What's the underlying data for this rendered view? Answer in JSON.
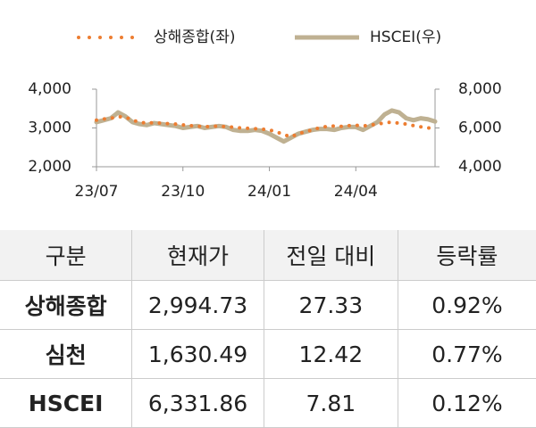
{
  "chart_data": {
    "type": "line",
    "categories": [
      "23/07",
      null,
      null,
      null,
      null,
      null,
      null,
      null,
      null,
      null,
      null,
      null,
      "23/10",
      null,
      null,
      null,
      null,
      null,
      null,
      null,
      null,
      null,
      null,
      null,
      "24/01",
      null,
      null,
      null,
      null,
      null,
      null,
      null,
      null,
      null,
      null,
      null,
      "24/04",
      null,
      null,
      null,
      null,
      null,
      null,
      null,
      null,
      null,
      null,
      null
    ],
    "series": [
      {
        "name": "상해종합(좌)",
        "color": "#ed7d31",
        "axis": "y",
        "values": [
          3200,
          3230,
          3250,
          3290,
          3280,
          3200,
          3150,
          3120,
          3140,
          3120,
          3110,
          3100,
          3080,
          3060,
          3050,
          3030,
          3040,
          3050,
          3030,
          3020,
          3000,
          2990,
          2980,
          2970,
          2950,
          2900,
          2830,
          2770,
          2850,
          2900,
          2950,
          3010,
          3040,
          3050,
          3040,
          3060,
          3070,
          3050,
          3070,
          3100,
          3130,
          3150,
          3120,
          3100,
          3060,
          3030,
          3000,
          2995
        ]
      },
      {
        "name": "HSCEI(우)",
        "color": "#bfb192",
        "axis": "y2",
        "values": [
          6300,
          6400,
          6500,
          6800,
          6600,
          6300,
          6200,
          6150,
          6250,
          6200,
          6150,
          6100,
          6000,
          6050,
          6100,
          6000,
          6050,
          6100,
          6050,
          5900,
          5850,
          5850,
          5900,
          5850,
          5700,
          5500,
          5300,
          5500,
          5700,
          5800,
          5900,
          5950,
          5950,
          5900,
          6000,
          6050,
          6050,
          5900,
          6100,
          6300,
          6700,
          6900,
          6800,
          6500,
          6400,
          6500,
          6450,
          6332
        ]
      }
    ],
    "ylim": [
      2000,
      4000
    ],
    "yticks": [
      {
        "value": 2000,
        "label": "2,000"
      },
      {
        "value": 3000,
        "label": "3,000"
      },
      {
        "value": 4000,
        "label": "4,000"
      }
    ],
    "y2lim": [
      4000,
      8000
    ],
    "y2ticks": [
      {
        "value": 4000,
        "label": "4,000"
      },
      {
        "value": 6000,
        "label": "6,000"
      },
      {
        "value": 8000,
        "label": "8,000"
      }
    ],
    "legend": "top"
  },
  "table": {
    "header": [
      "구분",
      "현재가",
      "전일 대비",
      "등락률"
    ],
    "rows": [
      [
        "상해종합",
        "2,994.73",
        "27.33",
        "0.92%"
      ],
      [
        "심천",
        "1,630.49",
        "12.42",
        "0.77%"
      ],
      [
        "HSCEI",
        "6,331.86",
        "7.81",
        "0.12%"
      ]
    ]
  }
}
